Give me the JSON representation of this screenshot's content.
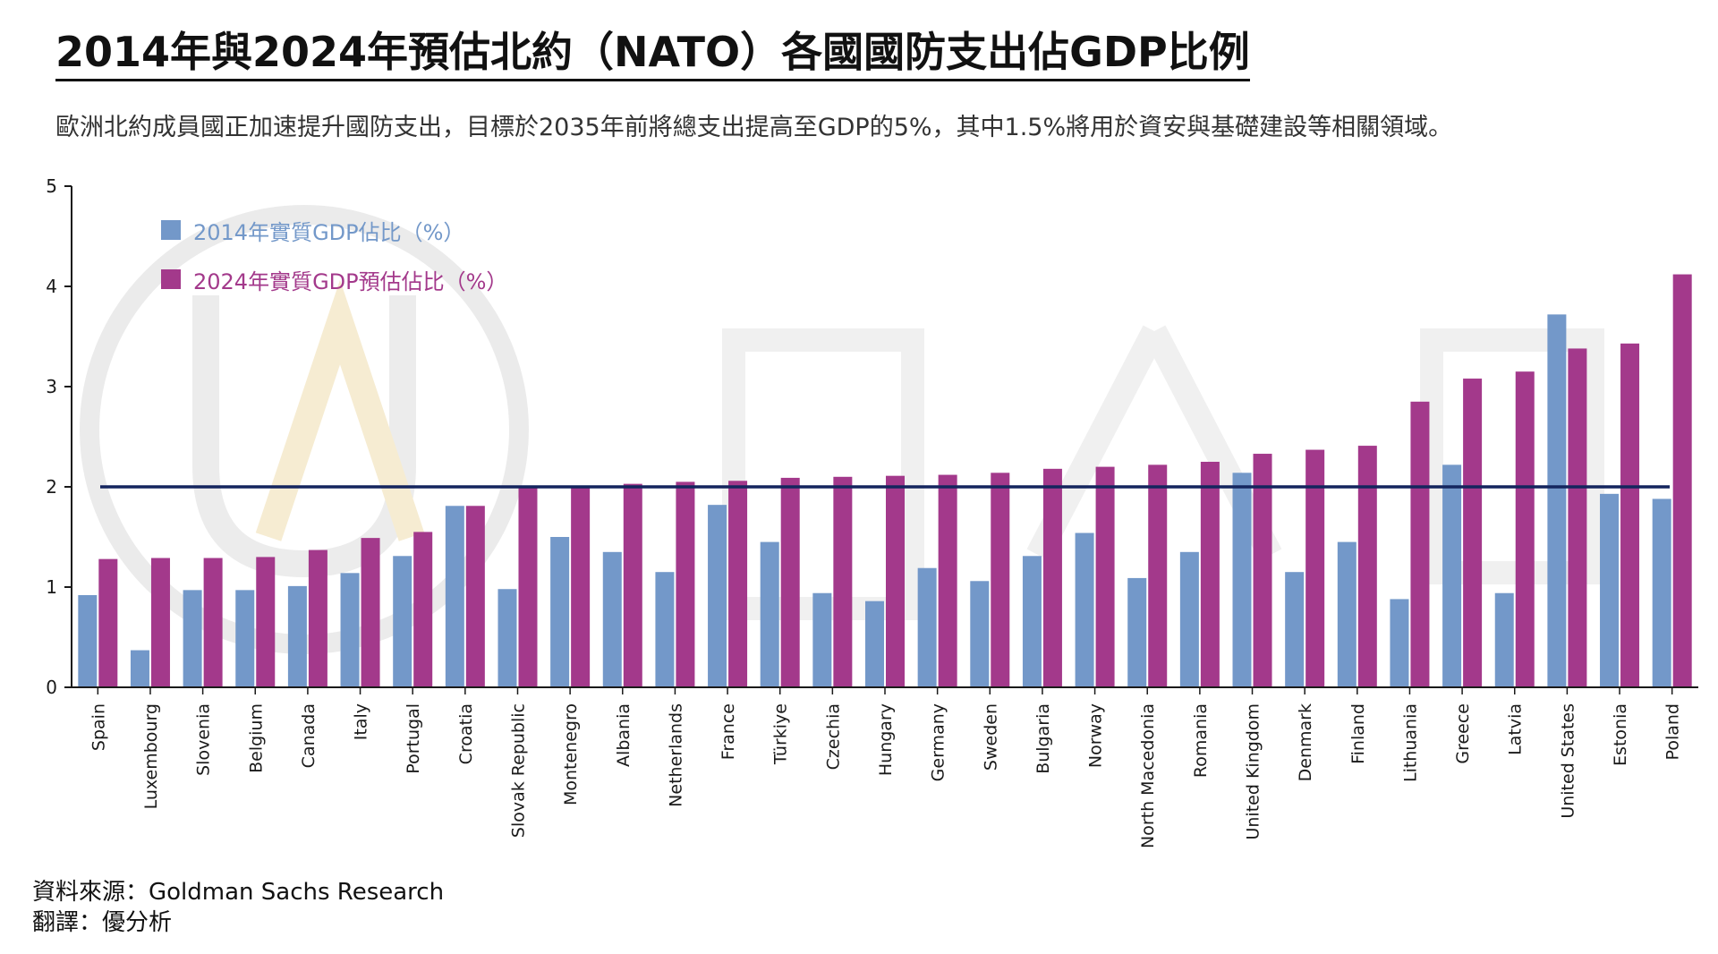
{
  "title": "2014年與2024年預估北約（NATO）各國國防支出佔GDP比例",
  "subtitle": "歐洲北約成員國正加速提升國防支出，目標於2035年前將總支出提高至GDP的5%，其中1.5%將用於資安與基礎建設等相關領域。",
  "source": {
    "line1": "資料來源：Goldman Sachs Research",
    "line2": "翻譯：優分析"
  },
  "colors": {
    "series_2014": "#7398c9",
    "series_2024": "#a3398b",
    "reference_line": "#14255e",
    "axis": "#1a1a1a"
  },
  "chart_data": {
    "type": "bar",
    "categories": [
      "Spain",
      "Luxembourg",
      "Slovenia",
      "Belgium",
      "Canada",
      "Italy",
      "Portugal",
      "Croatia",
      "Slovak Republic",
      "Montenegro",
      "Albania",
      "Netherlands",
      "France",
      "Türkiye",
      "Czechia",
      "Hungary",
      "Germany",
      "Sweden",
      "Bulgaria",
      "Norway",
      "North Macedonia",
      "Romania",
      "United Kingdom",
      "Denmark",
      "Finland",
      "Lithuania",
      "Greece",
      "Latvia",
      "United States",
      "Estonia",
      "Poland"
    ],
    "series": [
      {
        "name": "2014年實質GDP佔比（%）",
        "values": [
          0.92,
          0.37,
          0.97,
          0.97,
          1.01,
          1.14,
          1.31,
          1.81,
          0.98,
          1.5,
          1.35,
          1.15,
          1.82,
          1.45,
          0.94,
          0.86,
          1.19,
          1.06,
          1.31,
          1.54,
          1.09,
          1.35,
          2.14,
          1.15,
          1.45,
          0.88,
          2.22,
          0.94,
          3.72,
          1.93,
          1.88
        ]
      },
      {
        "name": "2024年實質GDP預估佔比（%）",
        "values": [
          1.28,
          1.29,
          1.29,
          1.3,
          1.37,
          1.49,
          1.55,
          1.81,
          2.0,
          2.0,
          2.03,
          2.05,
          2.06,
          2.09,
          2.1,
          2.11,
          2.12,
          2.14,
          2.18,
          2.2,
          2.22,
          2.25,
          2.33,
          2.37,
          2.41,
          2.85,
          3.08,
          3.15,
          3.38,
          3.43,
          4.12
        ]
      }
    ],
    "reference_line": 2,
    "ylim": [
      0,
      5
    ],
    "yticks": [
      "0",
      "1",
      "2",
      "3",
      "4",
      "5"
    ],
    "xlabel": "",
    "ylabel": "",
    "grid": false,
    "legend_position": "top-left"
  }
}
